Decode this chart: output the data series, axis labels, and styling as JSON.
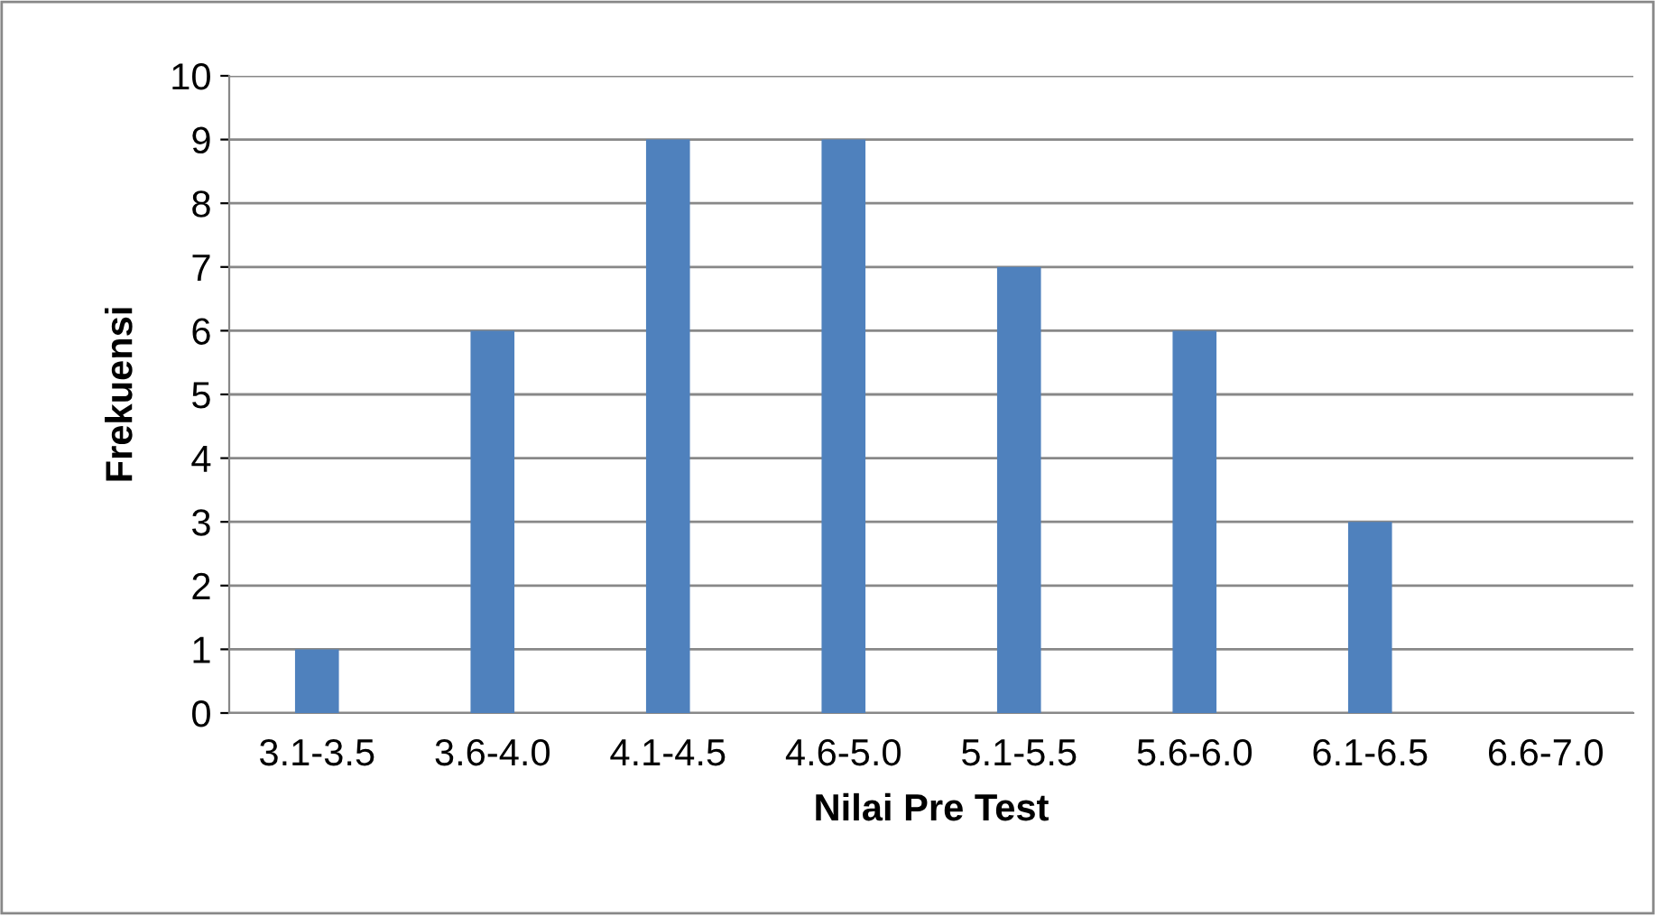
{
  "chart_data": {
    "type": "bar",
    "xlabel": "Nilai Pre Test",
    "ylabel": "Frekuensi",
    "categories": [
      "3.1-3.5",
      "3.6-4.0",
      "4.1-4.5",
      "4.6-5.0",
      "5.1-5.5",
      "5.6-6.0",
      "6.1-6.5",
      "6.6-7.0"
    ],
    "values": [
      1,
      6,
      9,
      9,
      7,
      6,
      3,
      0
    ],
    "color": "#4f81bd",
    "ylim": [
      0,
      10
    ],
    "yticks": [
      0,
      1,
      2,
      3,
      4,
      5,
      6,
      7,
      8,
      9,
      10
    ],
    "grid": "y"
  }
}
